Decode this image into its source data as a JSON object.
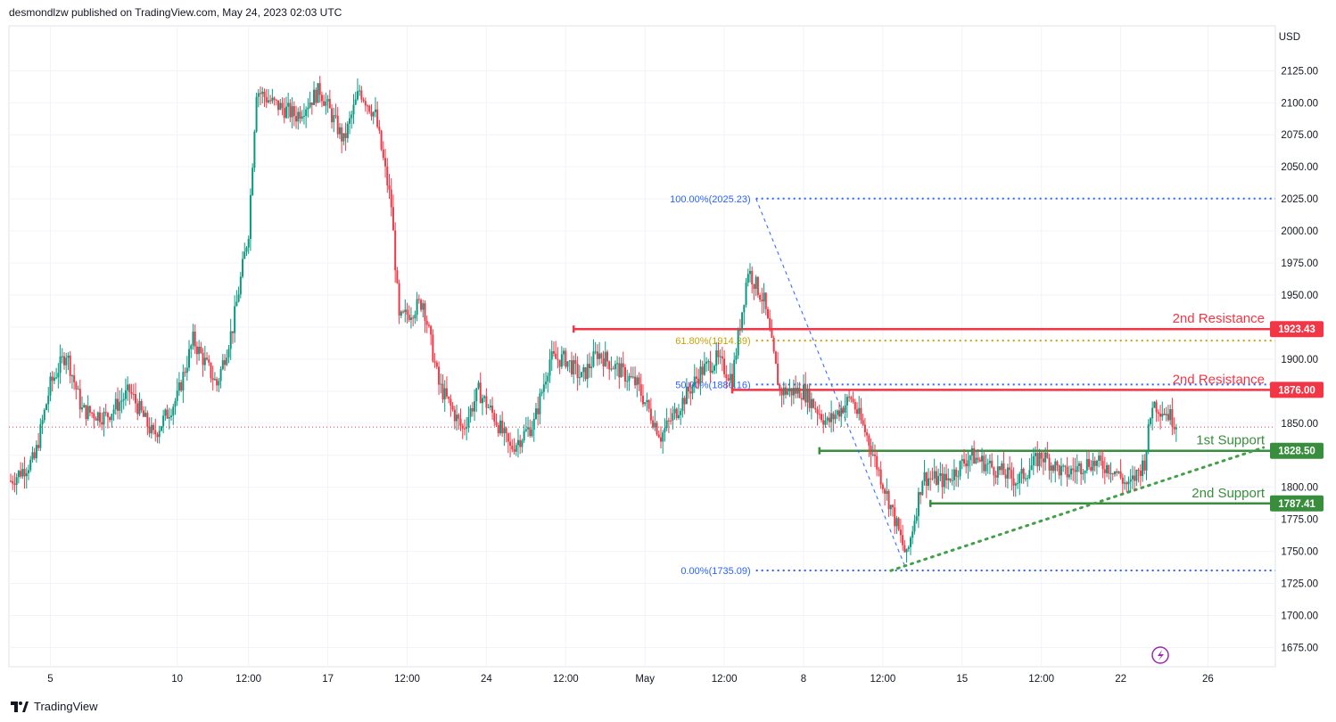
{
  "header": {
    "text": "desmondlzw published on TradingView.com, May 24, 2023 02:03 UTC"
  },
  "footer": {
    "brand": "TradingView"
  },
  "colors": {
    "up": "#089981",
    "down": "#f23645",
    "resistance": "#f23645",
    "support": "#388e3c",
    "fib": "#2962ff",
    "fib618": "#c9a200",
    "trend": "#43a047",
    "grid": "#f0f3fa"
  },
  "chart_data": {
    "type": "candlestick",
    "currency": "USD",
    "ylim": [
      1660,
      2160
    ],
    "y_ticks": [
      2125,
      2100,
      2075,
      2050,
      2025,
      2000,
      1975,
      1950,
      1925,
      1900,
      1875,
      1850,
      1825,
      1800,
      1775,
      1750,
      1725,
      1700,
      1675
    ],
    "y_tick_labels": [
      "2125.00",
      "2100.00",
      "2075.00",
      "2050.00",
      "2025.00",
      "2000.00",
      "1975.00",
      "1950.00",
      "1925.00",
      "1900.00",
      "1875.00",
      "1850.00",
      "1825.00",
      "1800.00",
      "1775.00",
      "1750.00",
      "1725.00",
      "1700.00",
      "1675.00"
    ],
    "x_ticks": [
      {
        "label": "5",
        "bar": 5
      },
      {
        "label": "10",
        "bar": 21
      },
      {
        "label": "12:00",
        "bar": 30
      },
      {
        "label": "17",
        "bar": 40
      },
      {
        "label": "12:00",
        "bar": 50
      },
      {
        "label": "24",
        "bar": 60
      },
      {
        "label": "12:00",
        "bar": 70
      },
      {
        "label": "May",
        "bar": 80
      },
      {
        "label": "12:00",
        "bar": 90
      },
      {
        "label": "8",
        "bar": 100
      },
      {
        "label": "12:00",
        "bar": 110
      },
      {
        "label": "15",
        "bar": 120
      },
      {
        "label": "12:00",
        "bar": 130
      },
      {
        "label": "22",
        "bar": 140
      },
      {
        "label": "26",
        "bar": 151
      }
    ],
    "bars_total": 164,
    "path": [
      [
        0,
        1805
      ],
      [
        3,
        1822
      ],
      [
        5,
        1880
      ],
      [
        7,
        1905
      ],
      [
        9,
        1860
      ],
      [
        12,
        1855
      ],
      [
        15,
        1875
      ],
      [
        18,
        1840
      ],
      [
        21,
        1870
      ],
      [
        23,
        1915
      ],
      [
        26,
        1880
      ],
      [
        28,
        1925
      ],
      [
        30,
        2000
      ],
      [
        31,
        2110
      ],
      [
        33,
        2100
      ],
      [
        36,
        2090
      ],
      [
        39,
        2110
      ],
      [
        42,
        2070
      ],
      [
        44,
        2110
      ],
      [
        46,
        2090
      ],
      [
        48,
        2020
      ],
      [
        49,
        1930
      ],
      [
        52,
        1945
      ],
      [
        54,
        1880
      ],
      [
        57,
        1845
      ],
      [
        59,
        1875
      ],
      [
        61,
        1855
      ],
      [
        63,
        1830
      ],
      [
        66,
        1850
      ],
      [
        68,
        1900
      ],
      [
        70,
        1900
      ],
      [
        72,
        1885
      ],
      [
        74,
        1905
      ],
      [
        76,
        1895
      ],
      [
        79,
        1880
      ],
      [
        82,
        1840
      ],
      [
        85,
        1870
      ],
      [
        87,
        1890
      ],
      [
        89,
        1900
      ],
      [
        91,
        1885
      ],
      [
        93,
        1970
      ],
      [
        95,
        1945
      ],
      [
        97,
        1875
      ],
      [
        100,
        1875
      ],
      [
        103,
        1850
      ],
      [
        106,
        1870
      ],
      [
        108,
        1840
      ],
      [
        111,
        1785
      ],
      [
        113,
        1745
      ],
      [
        115,
        1808
      ],
      [
        118,
        1805
      ],
      [
        121,
        1825
      ],
      [
        124,
        1815
      ],
      [
        127,
        1805
      ],
      [
        130,
        1825
      ],
      [
        133,
        1810
      ],
      [
        136,
        1820
      ],
      [
        139,
        1815
      ],
      [
        141,
        1800
      ],
      [
        143,
        1820
      ],
      [
        144,
        1866
      ],
      [
        146,
        1857
      ],
      [
        147,
        1850
      ]
    ],
    "levels": [
      {
        "name": "2nd Resistance",
        "value": 1923.43,
        "label": "1923.43",
        "kind": "resistance",
        "from_bar": 71
      },
      {
        "name": "2nd Resistance",
        "value": 1876.0,
        "label": "1876.00",
        "kind": "resistance",
        "from_bar": 91
      },
      {
        "name": "1st Support",
        "value": 1828.5,
        "label": "1828.50",
        "kind": "support",
        "from_bar": 102
      },
      {
        "name": "2nd Support",
        "value": 1787.41,
        "label": "1787.41",
        "kind": "support",
        "from_bar": 116
      }
    ],
    "fibonacci": [
      {
        "label": "100.00%(2025.23)",
        "value": 2025.23,
        "color": "fib"
      },
      {
        "label": "61.80%(1914.39)",
        "value": 1914.39,
        "color": "fib618"
      },
      {
        "label": "50.00%(1880.16)",
        "value": 1880.16,
        "color": "fib"
      },
      {
        "label": "0.00%(1735.09)",
        "value": 1735.09,
        "color": "fib"
      }
    ],
    "fib_from_bar": 94,
    "fib_to_bar": 161,
    "swing_high": {
      "bar": 94,
      "value": 2025.23
    },
    "swing_low": {
      "bar": 113,
      "value": 1735.09
    },
    "trendline": {
      "from": {
        "bar": 111,
        "value": 1735
      },
      "to": {
        "bar": 158,
        "value": 1831
      }
    },
    "last_price": 1847,
    "grid": true
  }
}
